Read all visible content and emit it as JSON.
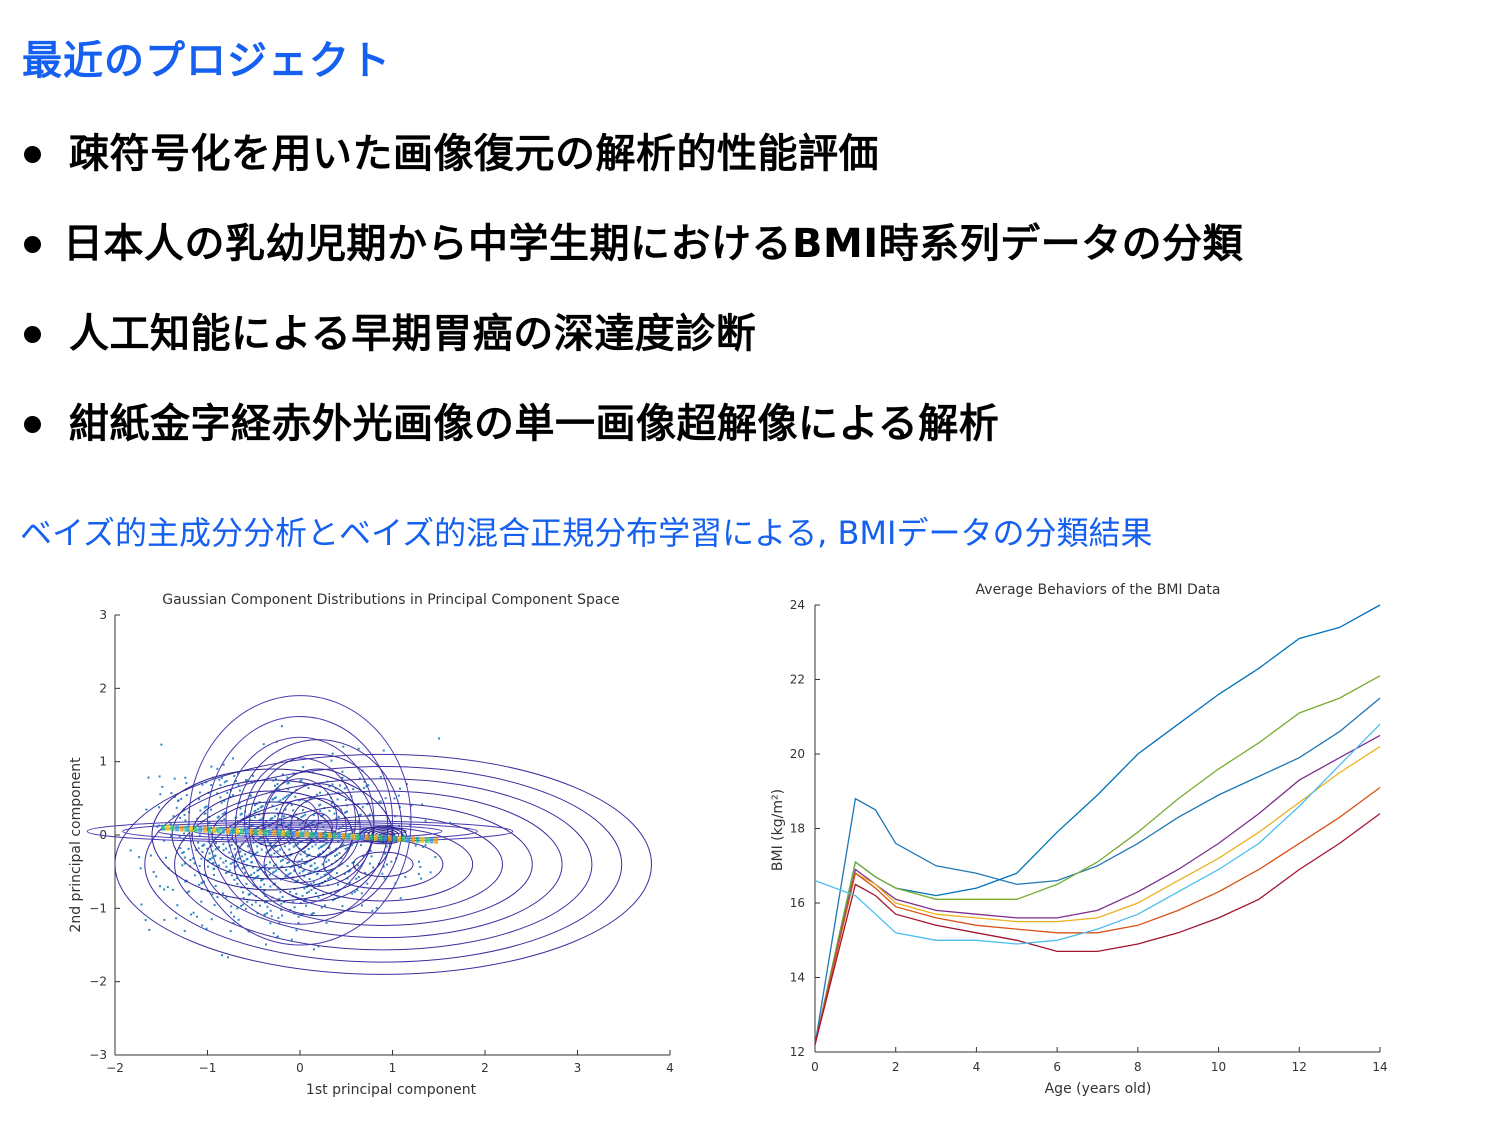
{
  "title": "最近のプロジェクト",
  "bullets": [
    "疎符号化を用いた画像復元の解析的性能評価",
    "日本人の乳幼児期から中学生期におけるBMI時系列データの分類",
    "人工知能による早期胃癌の深達度診断",
    "紺紙金字経赤外光画像の単一画像超解像による解析"
  ],
  "caption": "ベイズ的主成分分析とベイズ的混合正規分布学習による, BMIデータの分類結果",
  "colors": {
    "accent": "#1560f0"
  },
  "chart_data": [
    {
      "type": "scatter",
      "title": "Gaussian Component Distributions in Principal Component Space",
      "xlabel": "1st principal component",
      "ylabel": "2nd principal component",
      "xlim": [
        -2,
        4
      ],
      "ylim": [
        -3,
        3
      ],
      "xticks": [
        "−2",
        "−1",
        "0",
        "1",
        "2",
        "3",
        "4"
      ],
      "yticks": [
        "−3",
        "−2",
        "−1",
        "0",
        "1",
        "2",
        "3"
      ],
      "grid": false,
      "components": [
        {
          "cx": 0.9,
          "cy": -0.4,
          "rx": 2.9,
          "ry": 1.5
        },
        {
          "cx": 0.0,
          "cy": 0.2,
          "rx": 1.2,
          "ry": 1.7
        },
        {
          "cx": -0.3,
          "cy": 0.0,
          "rx": 1.3,
          "ry": 0.9
        },
        {
          "cx": 0.2,
          "cy": 0.1,
          "rx": 0.9,
          "ry": 1.2
        },
        {
          "cx": 0.0,
          "cy": 0.05,
          "rx": 2.3,
          "ry": 0.15
        },
        {
          "cx": 0.9,
          "cy": 0.0,
          "rx": 0.25,
          "ry": 0.12
        }
      ]
    },
    {
      "type": "line",
      "title": "Average Behaviors of the BMI Data",
      "xlabel": "Age (years old)",
      "ylabel": "BMI (kg/m²)",
      "xlim": [
        0,
        14
      ],
      "ylim": [
        12,
        24
      ],
      "xticks": [
        "0",
        "2",
        "4",
        "6",
        "8",
        "10",
        "12",
        "14"
      ],
      "yticks": [
        "12",
        "14",
        "16",
        "18",
        "20",
        "22",
        "24"
      ],
      "x": [
        0,
        1,
        1.5,
        2,
        3,
        4,
        5,
        6,
        7,
        8,
        9,
        10,
        11,
        12,
        13,
        14
      ],
      "series": [
        {
          "color": "#1f77b4",
          "values": [
            12.2,
            18.8,
            18.5,
            17.6,
            17.0,
            16.8,
            16.5,
            16.6,
            17.0,
            17.6,
            18.3,
            18.9,
            19.4,
            19.9,
            20.6,
            21.5
          ]
        },
        {
          "color": "#0072bd",
          "values": [
            12.2,
            17.1,
            16.7,
            16.4,
            16.2,
            16.4,
            16.8,
            17.9,
            18.9,
            20.0,
            20.8,
            21.6,
            22.3,
            23.1,
            23.4,
            24.0
          ]
        },
        {
          "color": "#77ac30",
          "values": [
            12.2,
            17.1,
            16.7,
            16.4,
            16.1,
            16.1,
            16.1,
            16.5,
            17.1,
            17.9,
            18.8,
            19.6,
            20.3,
            21.1,
            21.5,
            22.1
          ]
        },
        {
          "color": "#7e2f8e",
          "values": [
            12.2,
            16.9,
            16.5,
            16.1,
            15.8,
            15.7,
            15.6,
            15.6,
            15.8,
            16.3,
            16.9,
            17.6,
            18.4,
            19.3,
            19.9,
            20.5
          ]
        },
        {
          "color": "#edb120",
          "values": [
            12.2,
            16.8,
            16.5,
            16.0,
            15.7,
            15.6,
            15.5,
            15.5,
            15.6,
            16.0,
            16.6,
            17.2,
            17.9,
            18.7,
            19.5,
            20.2
          ]
        },
        {
          "color": "#d95319",
          "values": [
            12.2,
            16.8,
            16.4,
            15.9,
            15.6,
            15.4,
            15.3,
            15.2,
            15.2,
            15.4,
            15.8,
            16.3,
            16.9,
            17.6,
            18.3,
            19.1
          ]
        },
        {
          "color": "#a2142f",
          "values": [
            12.2,
            16.5,
            16.2,
            15.7,
            15.4,
            15.2,
            15.0,
            14.7,
            14.7,
            14.9,
            15.2,
            15.6,
            16.1,
            16.9,
            17.6,
            18.4
          ]
        },
        {
          "color": "#4dbeee",
          "values": [
            16.6,
            16.2,
            15.7,
            15.2,
            15.0,
            15.0,
            14.9,
            15.0,
            15.3,
            15.7,
            16.3,
            16.9,
            17.6,
            18.6,
            19.7,
            20.8
          ]
        }
      ]
    }
  ]
}
